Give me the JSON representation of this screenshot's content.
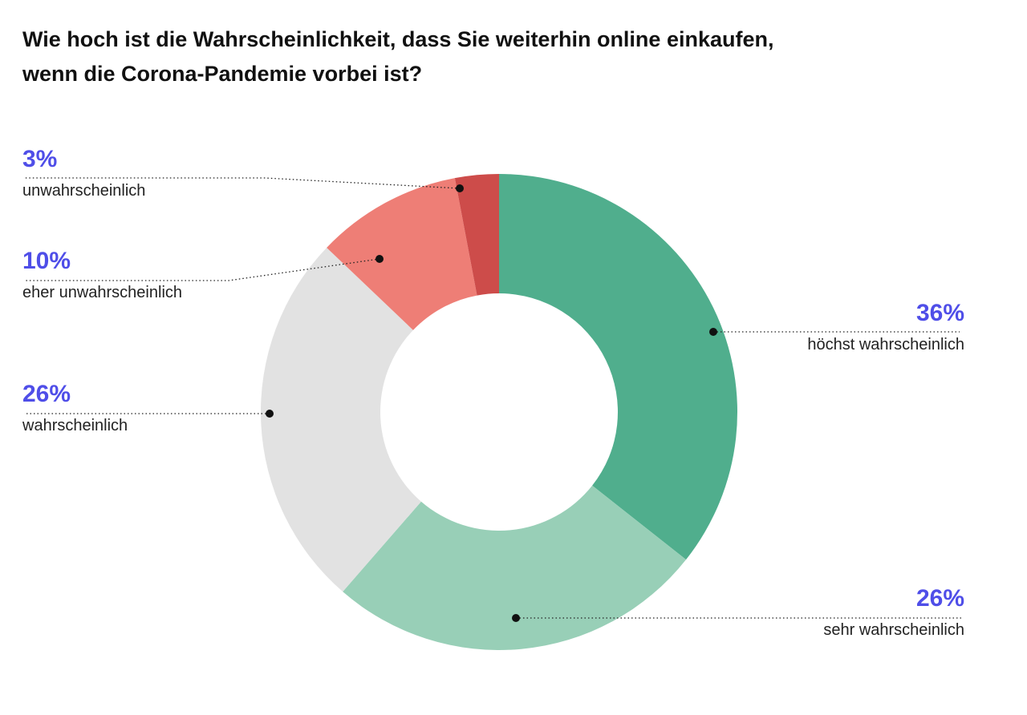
{
  "chart_data": {
    "type": "pie",
    "variant": "donut",
    "title_lines": [
      "Wie hoch ist die Wahrscheinlichkeit, dass Sie weiterhin online einkaufen,",
      "wenn die Corona-Pandemie vorbei ist?"
    ],
    "slices": [
      {
        "label": "höchst wahrscheinlich",
        "value": 36,
        "display": "36%",
        "color": "#50ae8d"
      },
      {
        "label": "sehr wahrscheinlich",
        "value": 26,
        "display": "26%",
        "color": "#98cfb7"
      },
      {
        "label": "wahrscheinlich",
        "value": 26,
        "display": "26%",
        "color": "#e2e2e2"
      },
      {
        "label": "eher unwahrscheinlich",
        "value": 10,
        "display": "10%",
        "color": "#ee7e76"
      },
      {
        "label": "unwahrscheinlich",
        "value": 3,
        "display": "3%",
        "color": "#cd4c4a"
      }
    ],
    "start": "12 o'clock",
    "direction": "clockwise",
    "value_color": "#4f4ee8"
  }
}
